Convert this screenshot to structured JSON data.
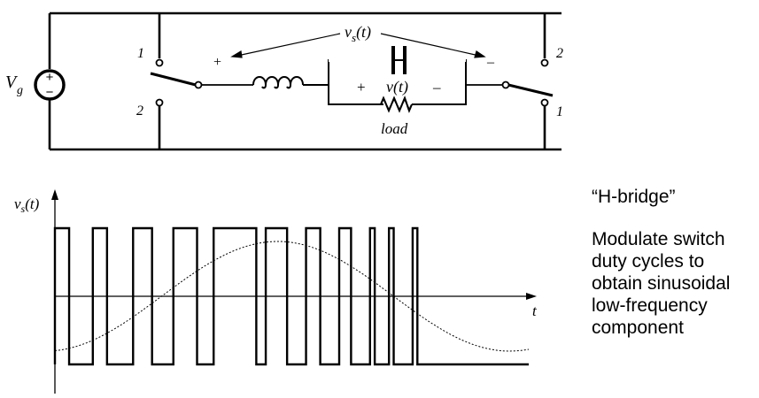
{
  "circuit": {
    "source_label": "V",
    "source_sub": "g",
    "source_plus": "+",
    "source_minus": "−",
    "vs_label_v": "v",
    "vs_label_sub": "s",
    "vs_label_t": "(t)",
    "plus_sign": "+",
    "minus_sign": "–",
    "cap_plus": "+",
    "cap_minus": "–",
    "v_label": "v(t)",
    "load_label": "load",
    "left_switch_top": "1",
    "left_switch_bottom": "2",
    "right_switch_top": "2",
    "right_switch_bottom": "1"
  },
  "waveform": {
    "ylabel_v": "v",
    "ylabel_sub": "s",
    "ylabel_t": "(t)",
    "xlabel": "t"
  },
  "side": {
    "title": "“H-bridge”",
    "description": "Modulate switch duty cycles to obtain sinusoidal low-frequency component"
  },
  "chart_data": {
    "type": "line",
    "title": "",
    "xlabel": "t",
    "ylabel": "vs(t)",
    "series": [
      {
        "description": "switched waveform vs(t), levels +Vg / -Vg",
        "high_intervals": [
          [
            0,
            0.03
          ],
          [
            0.08,
            0.11
          ],
          [
            0.165,
            0.205
          ],
          [
            0.25,
            0.3
          ],
          [
            0.335,
            0.425
          ],
          [
            0.445,
            0.49
          ],
          [
            0.53,
            0.56
          ],
          [
            0.6,
            0.625
          ],
          [
            0.665,
            0.675
          ],
          [
            0.705,
            0.715
          ],
          [
            0.755,
            0.765
          ]
        ]
      },
      {
        "description": "sinusoidal low-frequency component (dotted)",
        "shape": "sinusoid"
      }
    ]
  }
}
